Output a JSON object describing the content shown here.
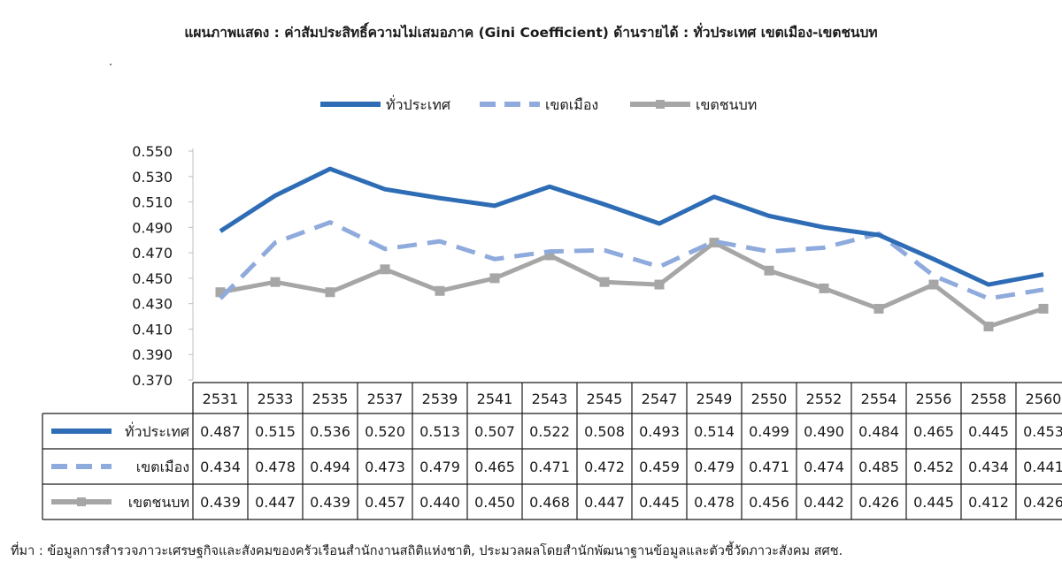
{
  "title": "แผนภาพแสดง : ค่าสัมประสิทธิ์ความไม่เสมอภาค (Gini Coefficient) ด้านรายได้ : ทั่วประเทศ เขตเมือง-เขตชนบท",
  "source": "ที่มา : ข้อมูลการสำรวจภาวะเศรษฐกิจและสังคมของครัวเรือนสำนักงานสถิติแห่งชาติ, ประมวลผลโดยสำนักพัฒนาฐานข้อมูลและตัวชี้วัดภาวะสังคม สศช.",
  "chart_data": {
    "type": "line",
    "title": "แผนภาพแสดง : ค่าสัมประสิทธิ์ความไม่เสมอภาค (Gini Coefficient) ด้านรายได้ : ทั่วประเทศ เขตเมือง-เขตชนบท",
    "categories": [
      "2531",
      "2533",
      "2535",
      "2537",
      "2539",
      "2541",
      "2543",
      "2545",
      "2547",
      "2549",
      "2550",
      "2552",
      "2554",
      "2556",
      "2558",
      "2560"
    ],
    "series": [
      {
        "name": "ทั่วประเทศ",
        "style": "solid",
        "marker": "none",
        "color": "#2e6db5",
        "values": [
          0.487,
          0.515,
          0.536,
          0.52,
          0.513,
          0.507,
          0.522,
          0.508,
          0.493,
          0.514,
          0.499,
          0.49,
          0.484,
          0.465,
          0.445,
          0.453
        ]
      },
      {
        "name": "เขตเมือง",
        "style": "dashed",
        "marker": "none",
        "color": "#8faadc",
        "values": [
          0.434,
          0.478,
          0.494,
          0.473,
          0.479,
          0.465,
          0.471,
          0.472,
          0.459,
          0.479,
          0.471,
          0.474,
          0.485,
          0.452,
          0.434,
          0.441
        ]
      },
      {
        "name": "เขตชนบท",
        "style": "solid",
        "marker": "square",
        "color": "#a6a6a6",
        "values": [
          0.439,
          0.447,
          0.439,
          0.457,
          0.44,
          0.45,
          0.468,
          0.447,
          0.445,
          0.478,
          0.456,
          0.442,
          0.426,
          0.445,
          0.412,
          0.426
        ]
      }
    ],
    "ylim": [
      0.37,
      0.55
    ],
    "yticks": [
      "0.550",
      "0.530",
      "0.510",
      "0.490",
      "0.470",
      "0.450",
      "0.430",
      "0.410",
      "0.390",
      "0.370"
    ],
    "legend": "top-center",
    "grid": false,
    "data_table": true
  }
}
